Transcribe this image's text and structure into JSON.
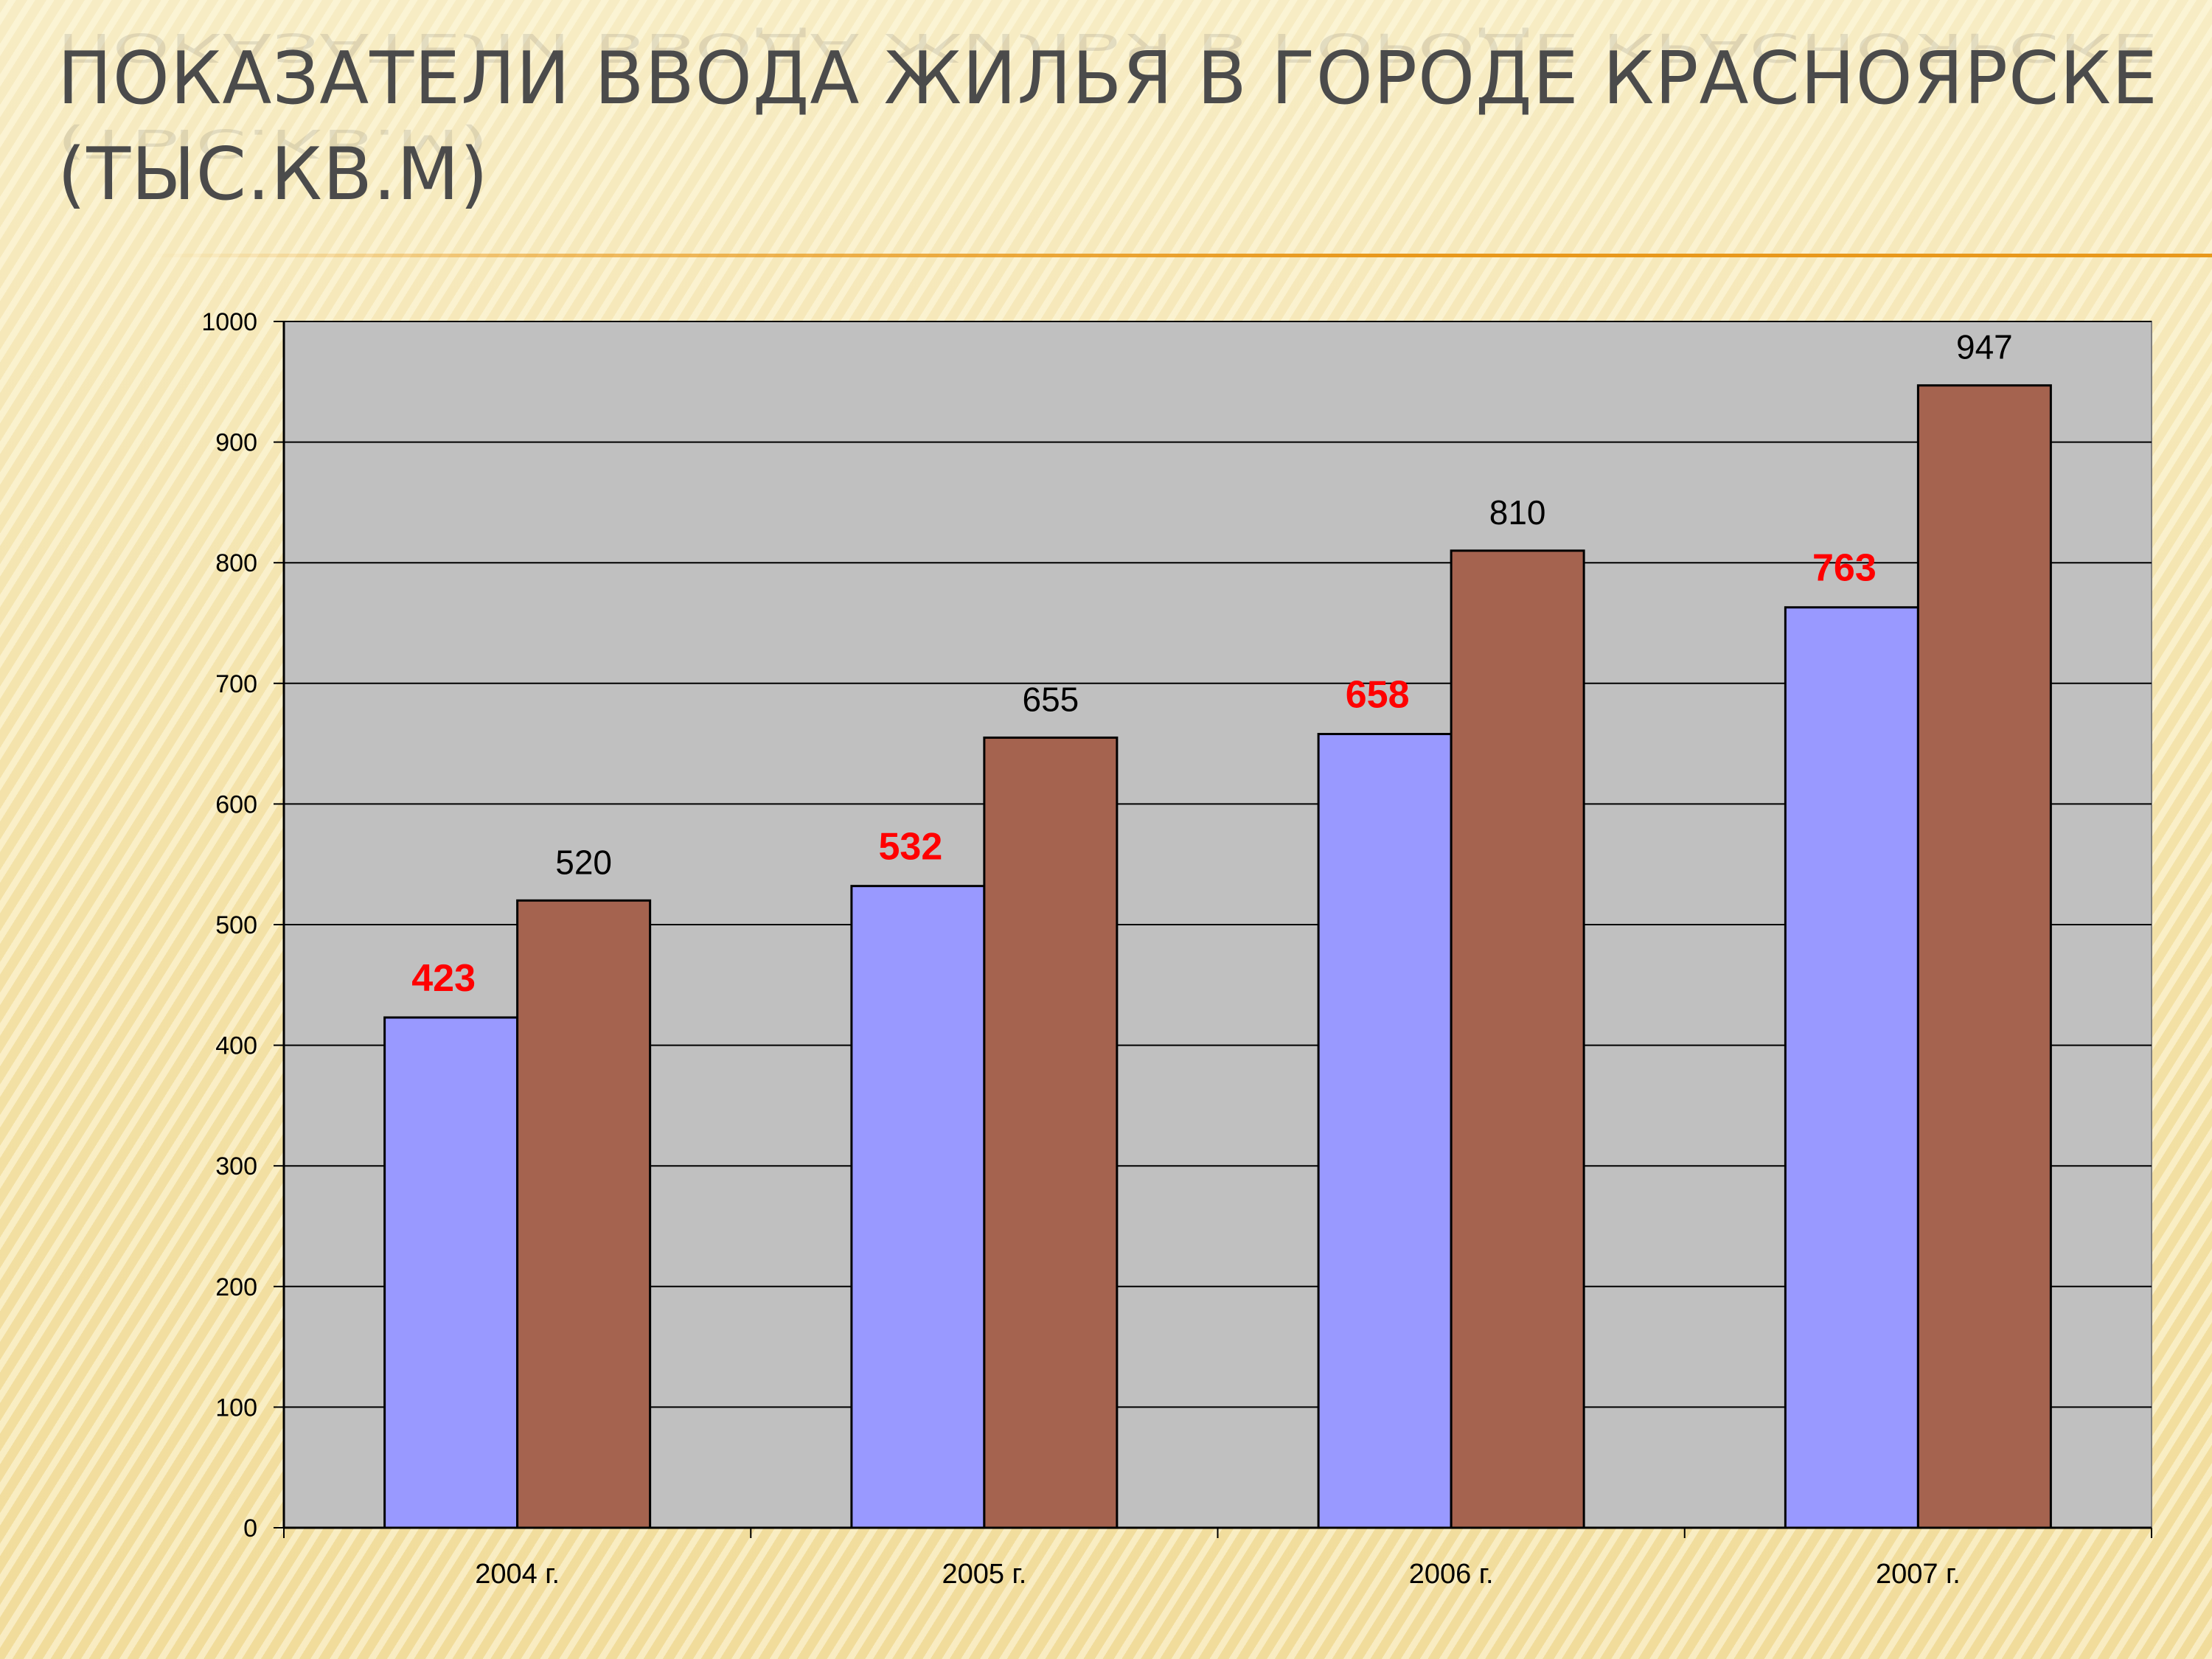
{
  "slide": {
    "title_line1": "Показатели ввода жилья в городе Красноярске",
    "title_line2": "(тыс.кв.м)"
  },
  "colors": {
    "plot_bg": "#c0c0c0",
    "series_a": "#9999ff",
    "series_b": "#a5634f",
    "label_a": "#ff0000",
    "label_b": "#000000"
  },
  "chart_data": {
    "type": "bar",
    "title": "",
    "xlabel": "",
    "ylabel": "",
    "categories": [
      "2004 г.",
      "2005 г.",
      "2006 г.",
      "2007 г."
    ],
    "series": [
      {
        "values": [
          423,
          532,
          658,
          763
        ]
      },
      {
        "values": [
          520,
          655,
          810,
          947
        ]
      }
    ],
    "ylim": [
      0,
      1000
    ],
    "yticks": [
      0,
      100,
      200,
      300,
      400,
      500,
      600,
      700,
      800,
      900,
      1000
    ],
    "grid": true,
    "legend": "none"
  }
}
